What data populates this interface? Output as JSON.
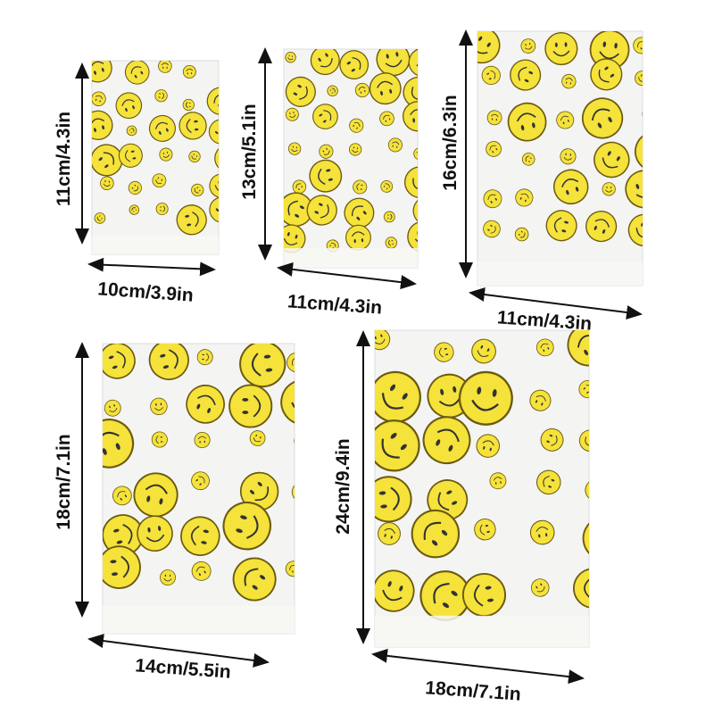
{
  "colors": {
    "smiley_fill": "#f5e23a",
    "smiley_stroke": "#6b5a10",
    "bag": "#f4f4f2",
    "arrow": "#111111"
  },
  "bags": [
    {
      "height_label": "11cm/4.3in",
      "width_label": "10cm/3.9in"
    },
    {
      "height_label": "13cm/5.1in",
      "width_label": "11cm/4.3in"
    },
    {
      "height_label": "16cm/6.3in",
      "width_label": "11cm/4.3in"
    },
    {
      "height_label": "18cm/7.1in",
      "width_label": "14cm/5.5in"
    },
    {
      "height_label": "24cm/9.4in",
      "width_label": "18cm/7.1in"
    }
  ]
}
